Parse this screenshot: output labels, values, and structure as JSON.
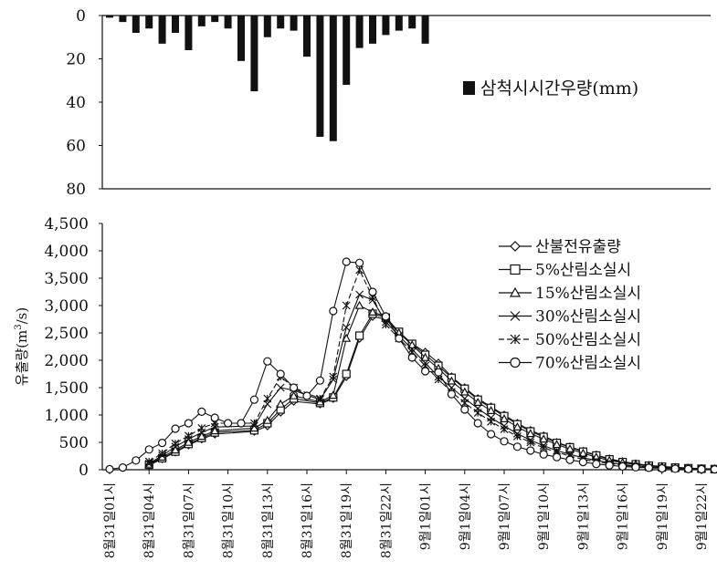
{
  "chart_data": [
    {
      "type": "bar",
      "inverted_y": true,
      "ylim": [
        0,
        80
      ],
      "yticks": [
        "0",
        "20",
        "40",
        "60",
        "80"
      ],
      "legend": "삼척시시간우량(mm)",
      "legend_position": "right",
      "x_index_step_hours": 1,
      "values": [
        1,
        3,
        8,
        6,
        13,
        8,
        16,
        5,
        3,
        6,
        21,
        35,
        10,
        6,
        7,
        19,
        56,
        58,
        32,
        15,
        13,
        9,
        7,
        6,
        13
      ]
    },
    {
      "type": "line",
      "ylabel": "유출량(m",
      "ylabel_sup": "3",
      "ylabel_tail": "/s)",
      "ylim": [
        0,
        4500
      ],
      "yticks": [
        "0",
        "500",
        "1,000",
        "1,500",
        "2,000",
        "2,500",
        "3,000",
        "3,500",
        "4,000",
        "4,500"
      ],
      "legend_position": "top-right",
      "xticks": [
        "8월31일01시",
        "8월31일04시",
        "8월31일07시",
        "8월31일10시",
        "8월31일13시",
        "8월31일16시",
        "8월31일19시",
        "8월31일22시",
        "9월1일01시",
        "9월1일04시",
        "9월1일07시",
        "9월1일10시",
        "9월1일13시",
        "9월1일16시",
        "9월1일19시",
        "9월1일22시"
      ],
      "xtick_hours": [
        0,
        3,
        6,
        9,
        12,
        15,
        18,
        21,
        24,
        27,
        30,
        33,
        36,
        39,
        42,
        45
      ],
      "series": [
        {
          "name": "산불전유출량",
          "marker": "diamond",
          "points": [
            [
              3,
              80
            ],
            [
              4,
              200
            ],
            [
              5,
              320
            ],
            [
              6,
              450
            ],
            [
              7,
              560
            ],
            [
              8,
              650
            ],
            [
              11,
              700
            ],
            [
              12,
              800
            ],
            [
              13,
              1050
            ],
            [
              14,
              1250
            ],
            [
              16,
              1200
            ],
            [
              17,
              1300
            ],
            [
              18,
              1700
            ],
            [
              19,
              2400
            ],
            [
              20,
              2800
            ],
            [
              21,
              2750
            ],
            [
              22,
              2500
            ],
            [
              23,
              2300
            ],
            [
              24,
              2150
            ],
            [
              25,
              1950
            ],
            [
              26,
              1700
            ],
            [
              27,
              1500
            ],
            [
              28,
              1300
            ],
            [
              29,
              1150
            ],
            [
              30,
              1000
            ],
            [
              31,
              850
            ],
            [
              32,
              720
            ],
            [
              33,
              620
            ],
            [
              34,
              500
            ],
            [
              35,
              420
            ],
            [
              36,
              340
            ],
            [
              37,
              270
            ],
            [
              38,
              200
            ],
            [
              39,
              150
            ],
            [
              40,
              110
            ],
            [
              41,
              80
            ],
            [
              42,
              60
            ],
            [
              43,
              45
            ],
            [
              44,
              30
            ],
            [
              45,
              20
            ],
            [
              46,
              15
            ]
          ]
        },
        {
          "name": "5%산림소실시",
          "marker": "square",
          "points": [
            [
              3,
              90
            ],
            [
              4,
              210
            ],
            [
              5,
              330
            ],
            [
              6,
              470
            ],
            [
              7,
              580
            ],
            [
              8,
              680
            ],
            [
              11,
              720
            ],
            [
              12,
              850
            ],
            [
              13,
              1100
            ],
            [
              14,
              1300
            ],
            [
              16,
              1220
            ],
            [
              17,
              1320
            ],
            [
              18,
              1750
            ],
            [
              19,
              2450
            ],
            [
              20,
              2850
            ],
            [
              21,
              2780
            ],
            [
              22,
              2520
            ],
            [
              23,
              2300
            ],
            [
              24,
              2100
            ],
            [
              25,
              1900
            ],
            [
              26,
              1680
            ],
            [
              27,
              1480
            ],
            [
              28,
              1280
            ],
            [
              29,
              1130
            ],
            [
              30,
              980
            ],
            [
              31,
              830
            ],
            [
              32,
              700
            ],
            [
              33,
              600
            ],
            [
              34,
              490
            ],
            [
              35,
              410
            ],
            [
              36,
              330
            ],
            [
              37,
              260
            ],
            [
              38,
              190
            ],
            [
              39,
              140
            ],
            [
              40,
              100
            ],
            [
              41,
              75
            ],
            [
              42,
              55
            ],
            [
              43,
              40
            ],
            [
              44,
              28
            ],
            [
              45,
              18
            ],
            [
              46,
              12
            ]
          ]
        },
        {
          "name": "15%산림소실시",
          "marker": "triangle",
          "points": [
            [
              3,
              100
            ],
            [
              4,
              230
            ],
            [
              5,
              360
            ],
            [
              6,
              500
            ],
            [
              7,
              610
            ],
            [
              8,
              710
            ],
            [
              11,
              760
            ],
            [
              12,
              900
            ],
            [
              13,
              1200
            ],
            [
              14,
              1350
            ],
            [
              16,
              1240
            ],
            [
              17,
              1360
            ],
            [
              18,
              2400
            ],
            [
              19,
              3000
            ],
            [
              20,
              2880
            ],
            [
              21,
              2800
            ],
            [
              22,
              2500
            ],
            [
              23,
              2280
            ],
            [
              24,
              2050
            ],
            [
              25,
              1850
            ],
            [
              26,
              1620
            ],
            [
              27,
              1420
            ],
            [
              28,
              1230
            ],
            [
              29,
              1080
            ],
            [
              30,
              930
            ],
            [
              31,
              780
            ],
            [
              32,
              660
            ],
            [
              33,
              560
            ],
            [
              34,
              460
            ],
            [
              35,
              380
            ],
            [
              36,
              300
            ],
            [
              37,
              230
            ],
            [
              38,
              170
            ],
            [
              39,
              130
            ],
            [
              40,
              95
            ],
            [
              41,
              70
            ],
            [
              42,
              50
            ],
            [
              43,
              35
            ],
            [
              44,
              25
            ],
            [
              45,
              16
            ],
            [
              46,
              10
            ]
          ]
        },
        {
          "name": "30%산림소실시",
          "marker": "x",
          "points": [
            [
              3,
              110
            ],
            [
              4,
              260
            ],
            [
              5,
              420
            ],
            [
              6,
              560
            ],
            [
              7,
              680
            ],
            [
              8,
              780
            ],
            [
              11,
              800
            ],
            [
              12,
              1200
            ],
            [
              13,
              1500
            ],
            [
              14,
              1450
            ],
            [
              16,
              1280
            ],
            [
              17,
              1650
            ],
            [
              18,
              2600
            ],
            [
              19,
              3200
            ],
            [
              20,
              3100
            ],
            [
              21,
              2700
            ],
            [
              22,
              2450
            ],
            [
              23,
              2200
            ],
            [
              24,
              1950
            ],
            [
              25,
              1700
            ],
            [
              26,
              1500
            ],
            [
              27,
              1300
            ],
            [
              28,
              1120
            ],
            [
              29,
              950
            ],
            [
              30,
              800
            ],
            [
              31,
              660
            ],
            [
              32,
              540
            ],
            [
              33,
              440
            ],
            [
              34,
              350
            ],
            [
              35,
              280
            ],
            [
              36,
              220
            ],
            [
              37,
              170
            ],
            [
              38,
              130
            ],
            [
              39,
              95
            ],
            [
              40,
              70
            ],
            [
              41,
              50
            ],
            [
              42,
              36
            ],
            [
              43,
              26
            ],
            [
              44,
              18
            ],
            [
              45,
              12
            ],
            [
              46,
              8
            ]
          ]
        },
        {
          "name": "50%산림소실시",
          "marker": "star",
          "points": [
            [
              3,
              150
            ],
            [
              4,
              300
            ],
            [
              5,
              480
            ],
            [
              6,
              620
            ],
            [
              7,
              760
            ],
            [
              8,
              850
            ],
            [
              11,
              850
            ],
            [
              12,
              1300
            ],
            [
              13,
              1700
            ],
            [
              14,
              1500
            ],
            [
              16,
              1300
            ],
            [
              17,
              1700
            ],
            [
              18,
              3000
            ],
            [
              19,
              3650
            ],
            [
              20,
              3150
            ],
            [
              21,
              2650
            ],
            [
              22,
              2400
            ],
            [
              23,
              2150
            ],
            [
              24,
              1900
            ],
            [
              25,
              1650
            ],
            [
              26,
              1420
            ],
            [
              27,
              1220
            ],
            [
              28,
              1040
            ],
            [
              29,
              880
            ],
            [
              30,
              740
            ],
            [
              31,
              610
            ],
            [
              32,
              500
            ],
            [
              33,
              400
            ],
            [
              34,
              320
            ],
            [
              35,
              250
            ],
            [
              36,
              190
            ],
            [
              37,
              145
            ],
            [
              38,
              110
            ],
            [
              39,
              80
            ],
            [
              40,
              60
            ],
            [
              41,
              45
            ],
            [
              42,
              33
            ],
            [
              43,
              24
            ],
            [
              44,
              17
            ],
            [
              45,
              11
            ],
            [
              46,
              7
            ]
          ]
        },
        {
          "name": "70%산림소실시",
          "marker": "circle",
          "points": [
            [
              0,
              10
            ],
            [
              1,
              40
            ],
            [
              2,
              170
            ],
            [
              3,
              370
            ],
            [
              4,
              490
            ],
            [
              5,
              750
            ],
            [
              6,
              850
            ],
            [
              7,
              1060
            ],
            [
              8,
              950
            ],
            [
              9,
              850
            ],
            [
              10,
              850
            ],
            [
              11,
              1280
            ],
            [
              12,
              1980
            ],
            [
              13,
              1750
            ],
            [
              14,
              1500
            ],
            [
              15,
              1350
            ],
            [
              16,
              1630
            ],
            [
              17,
              2900
            ],
            [
              18,
              3800
            ],
            [
              19,
              3780
            ],
            [
              20,
              3250
            ],
            [
              21,
              2800
            ],
            [
              22,
              2400
            ],
            [
              23,
              2050
            ],
            [
              24,
              1800
            ],
            [
              25,
              1780
            ],
            [
              26,
              1380
            ],
            [
              27,
              1100
            ],
            [
              28,
              850
            ],
            [
              29,
              650
            ],
            [
              30,
              520
            ],
            [
              31,
              420
            ],
            [
              32,
              350
            ],
            [
              33,
              280
            ],
            [
              34,
              230
            ],
            [
              35,
              180
            ],
            [
              36,
              140
            ],
            [
              37,
              105
            ],
            [
              38,
              80
            ],
            [
              39,
              60
            ],
            [
              40,
              45
            ],
            [
              41,
              35
            ],
            [
              42,
              25
            ],
            [
              43,
              18
            ],
            [
              44,
              13
            ],
            [
              45,
              9
            ],
            [
              46,
              6
            ]
          ]
        }
      ]
    }
  ]
}
